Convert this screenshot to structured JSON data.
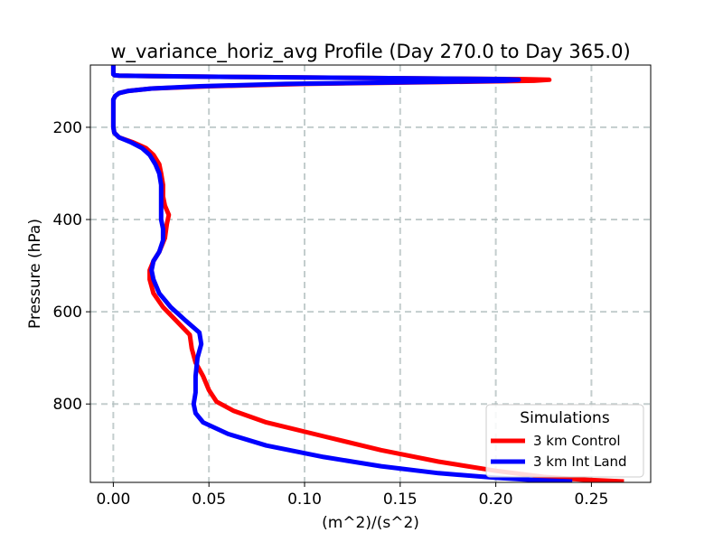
{
  "chart_data": {
    "type": "line",
    "title": "w_variance_horiz_avg Profile (Day 270.0 to Day 365.0)",
    "xlabel": "(m^2)/(s^2)",
    "ylabel": "Pressure (hPa)",
    "xlim": [
      -0.012,
      0.281
    ],
    "ylim": [
      65,
      970
    ],
    "y_inverted": true,
    "grid": true,
    "x_ticks": [
      0.0,
      0.05,
      0.1,
      0.15,
      0.2,
      0.25
    ],
    "x_tick_labels": [
      "0.00",
      "0.05",
      "0.10",
      "0.15",
      "0.20",
      "0.25"
    ],
    "y_ticks": [
      200,
      400,
      600,
      800
    ],
    "y_tick_labels": [
      "200",
      "400",
      "600",
      "800"
    ],
    "legend": {
      "title": "Simulations",
      "position": "lower-right"
    },
    "series": [
      {
        "name": "3 km Control",
        "color": "#ff0000",
        "points": [
          [
            0.0,
            65
          ],
          [
            0.0,
            85
          ],
          [
            0.0005,
            87
          ],
          [
            0.003,
            88
          ],
          [
            0.02,
            89
          ],
          [
            0.07,
            91
          ],
          [
            0.13,
            93
          ],
          [
            0.18,
            94.5
          ],
          [
            0.215,
            95.5
          ],
          [
            0.228,
            97
          ],
          [
            0.22,
            99
          ],
          [
            0.17,
            102
          ],
          [
            0.1,
            106
          ],
          [
            0.05,
            111
          ],
          [
            0.02,
            116
          ],
          [
            0.008,
            121
          ],
          [
            0.003,
            126
          ],
          [
            0.001,
            132
          ],
          [
            0.0,
            140
          ],
          [
            0.0,
            180
          ],
          [
            0.0,
            200
          ],
          [
            0.0005,
            212
          ],
          [
            0.003,
            222
          ],
          [
            0.01,
            232
          ],
          [
            0.017,
            245
          ],
          [
            0.021,
            260
          ],
          [
            0.024,
            280
          ],
          [
            0.025,
            300
          ],
          [
            0.026,
            325
          ],
          [
            0.026,
            350
          ],
          [
            0.027,
            370
          ],
          [
            0.029,
            390
          ],
          [
            0.028,
            410
          ],
          [
            0.027,
            440
          ],
          [
            0.024,
            470
          ],
          [
            0.021,
            490
          ],
          [
            0.019,
            510
          ],
          [
            0.019,
            530
          ],
          [
            0.021,
            560
          ],
          [
            0.026,
            590
          ],
          [
            0.033,
            620
          ],
          [
            0.04,
            650
          ],
          [
            0.041,
            680
          ],
          [
            0.043,
            710
          ],
          [
            0.047,
            740
          ],
          [
            0.05,
            770
          ],
          [
            0.054,
            795
          ],
          [
            0.063,
            815
          ],
          [
            0.08,
            840
          ],
          [
            0.11,
            870
          ],
          [
            0.14,
            900
          ],
          [
            0.17,
            925
          ],
          [
            0.2,
            945
          ],
          [
            0.225,
            958
          ],
          [
            0.245,
            964
          ],
          [
            0.267,
            968
          ]
        ]
      },
      {
        "name": "3 km Int Land",
        "color": "#0000ff",
        "points": [
          [
            0.0,
            65
          ],
          [
            0.0,
            85
          ],
          [
            0.0005,
            87
          ],
          [
            0.003,
            88
          ],
          [
            0.02,
            89
          ],
          [
            0.07,
            91
          ],
          [
            0.13,
            93
          ],
          [
            0.18,
            94.5
          ],
          [
            0.205,
            95.5
          ],
          [
            0.212,
            97
          ],
          [
            0.205,
            99
          ],
          [
            0.16,
            102
          ],
          [
            0.09,
            106
          ],
          [
            0.045,
            111
          ],
          [
            0.02,
            116
          ],
          [
            0.008,
            121
          ],
          [
            0.003,
            126
          ],
          [
            0.001,
            132
          ],
          [
            0.0,
            140
          ],
          [
            0.0,
            180
          ],
          [
            0.0,
            200
          ],
          [
            0.0005,
            212
          ],
          [
            0.003,
            222
          ],
          [
            0.009,
            232
          ],
          [
            0.015,
            245
          ],
          [
            0.019,
            260
          ],
          [
            0.022,
            280
          ],
          [
            0.024,
            300
          ],
          [
            0.025,
            325
          ],
          [
            0.025,
            350
          ],
          [
            0.025,
            375
          ],
          [
            0.025,
            400
          ],
          [
            0.026,
            420
          ],
          [
            0.026,
            445
          ],
          [
            0.024,
            470
          ],
          [
            0.021,
            490
          ],
          [
            0.02,
            510
          ],
          [
            0.021,
            530
          ],
          [
            0.024,
            560
          ],
          [
            0.03,
            590
          ],
          [
            0.038,
            620
          ],
          [
            0.045,
            645
          ],
          [
            0.046,
            670
          ],
          [
            0.044,
            700
          ],
          [
            0.043,
            740
          ],
          [
            0.043,
            775
          ],
          [
            0.042,
            800
          ],
          [
            0.043,
            820
          ],
          [
            0.047,
            840
          ],
          [
            0.06,
            865
          ],
          [
            0.08,
            890
          ],
          [
            0.11,
            915
          ],
          [
            0.14,
            935
          ],
          [
            0.17,
            950
          ],
          [
            0.2,
            960
          ],
          [
            0.22,
            965
          ],
          [
            0.24,
            968
          ]
        ]
      }
    ]
  }
}
